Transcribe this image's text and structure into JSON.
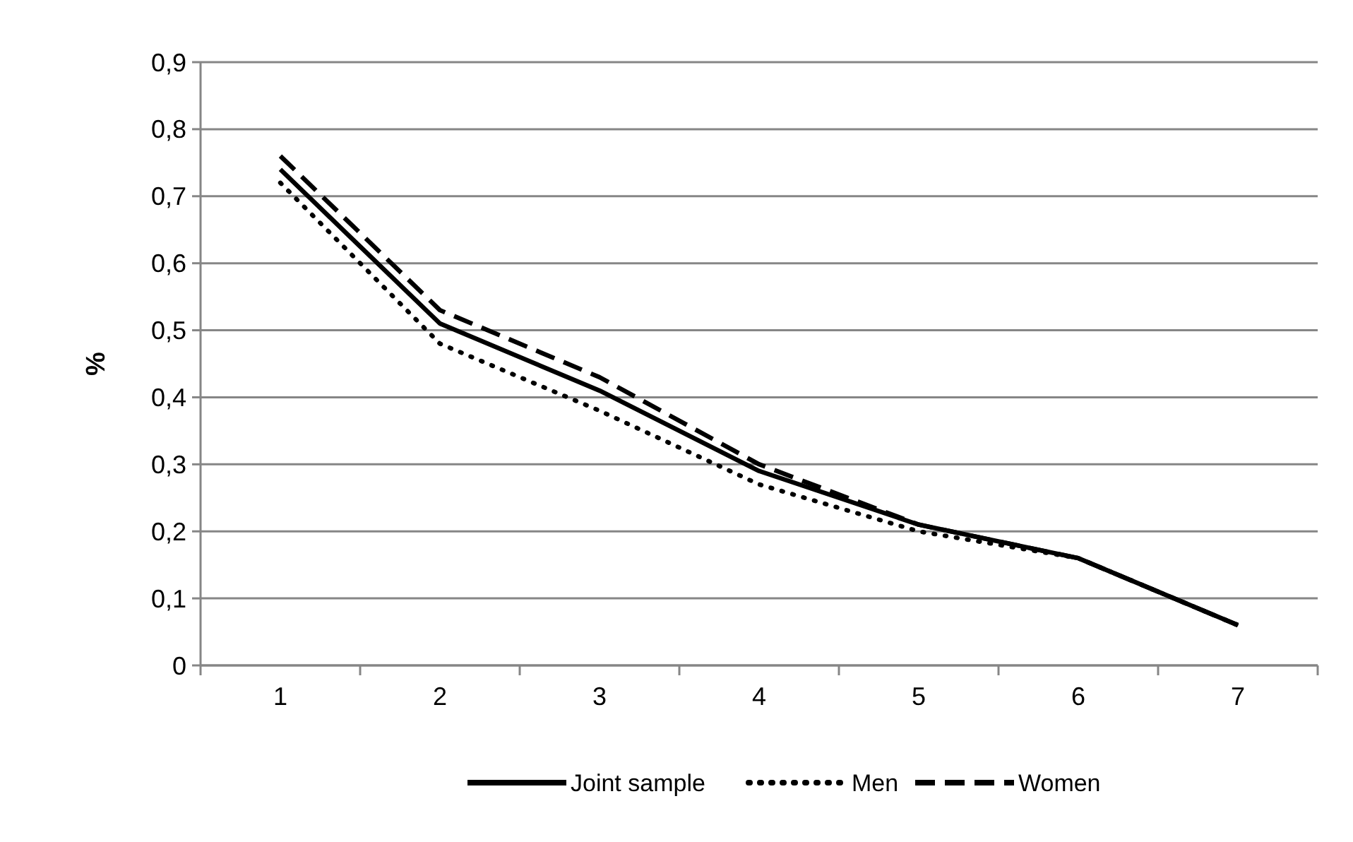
{
  "chart_data": {
    "type": "line",
    "ylabel": "%",
    "categories": [
      "1",
      "2",
      "3",
      "4",
      "5",
      "6",
      "7"
    ],
    "series": [
      {
        "name": "Joint sample",
        "color": "#000000",
        "line_style": "solid",
        "values": [
          0.74,
          0.51,
          0.41,
          0.29,
          0.21,
          0.16,
          0.06
        ]
      },
      {
        "name": "Men",
        "color": "#000000",
        "line_style": "dotted",
        "values": [
          0.72,
          0.48,
          0.38,
          0.27,
          0.2,
          0.16,
          0.06
        ]
      },
      {
        "name": "Women",
        "color": "#000000",
        "line_style": "dashed",
        "values": [
          0.76,
          0.53,
          0.43,
          0.3,
          0.21,
          0.16,
          0.06
        ]
      }
    ],
    "ylim": [
      0,
      0.9
    ],
    "yticks": [
      0,
      {
        "value": 0.1,
        "label": "0,1"
      },
      {
        "value": 0.2,
        "label": "0,2"
      },
      {
        "value": 0.3,
        "label": "0,3"
      },
      {
        "value": 0.4,
        "label": "0,4"
      },
      {
        "value": 0.5,
        "label": "0,5"
      },
      {
        "value": 0.6,
        "label": "0,6"
      },
      {
        "value": 0.7,
        "label": "0,7"
      },
      {
        "value": 0.8,
        "label": "0,8"
      },
      {
        "value": 0.9,
        "label": "0,9"
      }
    ],
    "grid": "y",
    "legend": "bottom"
  }
}
